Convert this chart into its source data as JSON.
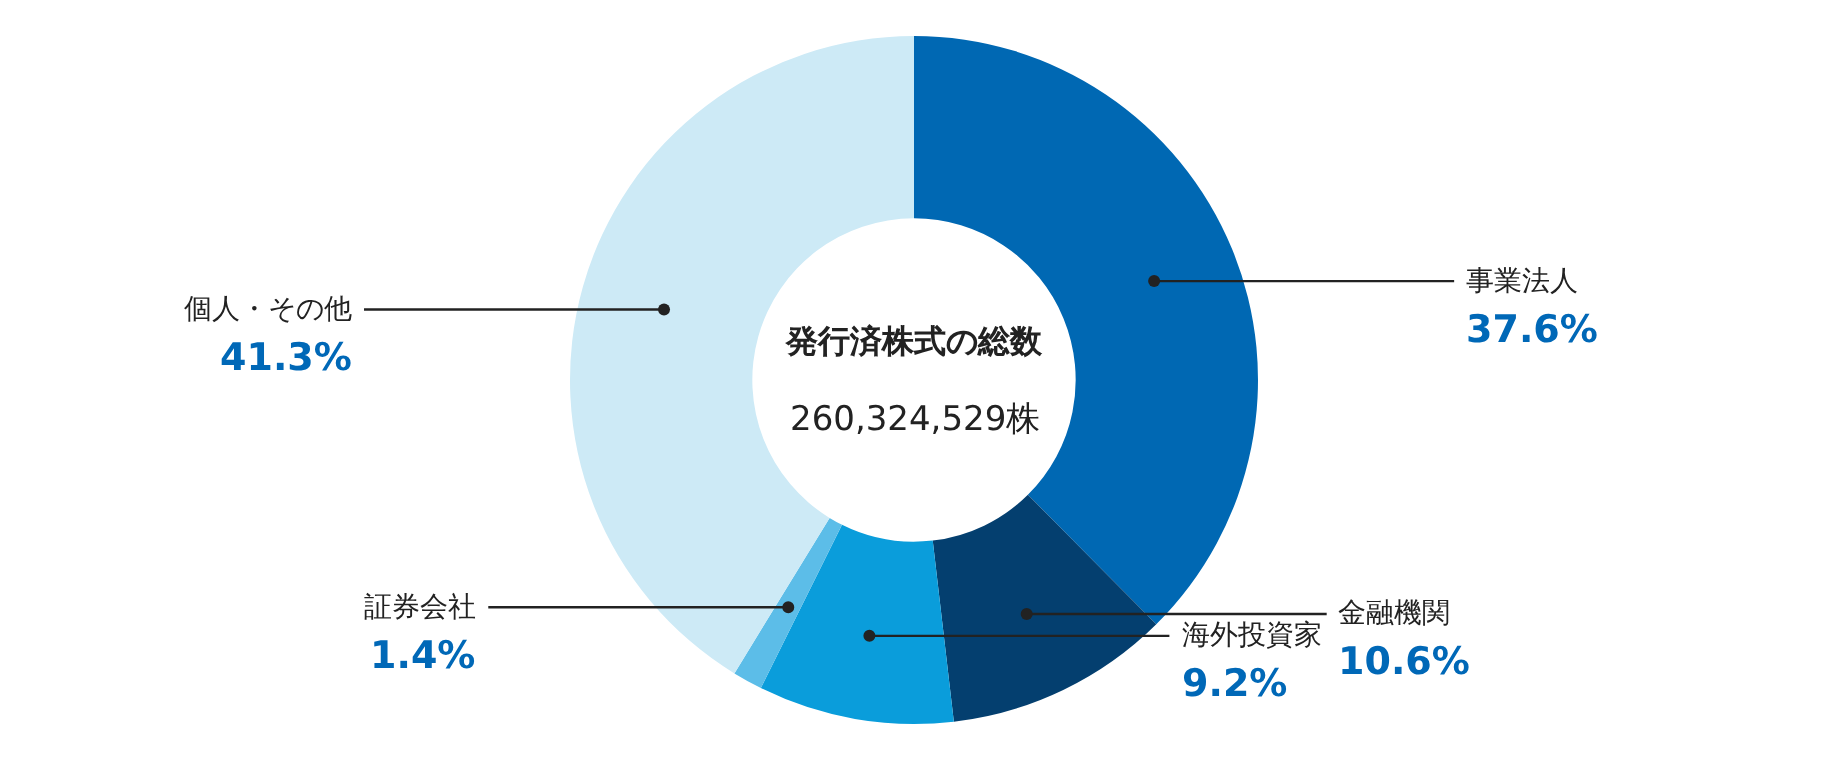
{
  "chart_data": {
    "type": "donut",
    "categories": [
      "事業法人",
      "金融機関",
      "海外投資家",
      "証券会社",
      "個人・その他"
    ],
    "values": [
      37.6,
      10.6,
      9.2,
      1.4,
      41.3
    ],
    "value_labels": [
      "37.6%",
      "10.6%",
      "9.2%",
      "1.4%",
      "41.3%"
    ],
    "colors": [
      "#0068b3",
      "#043f6f",
      "#0a9ddb",
      "#5cbde8",
      "#cdeaf6"
    ],
    "annotations": [
      "発行済株式の総数",
      "260,324,529株"
    ],
    "legend": false
  }
}
